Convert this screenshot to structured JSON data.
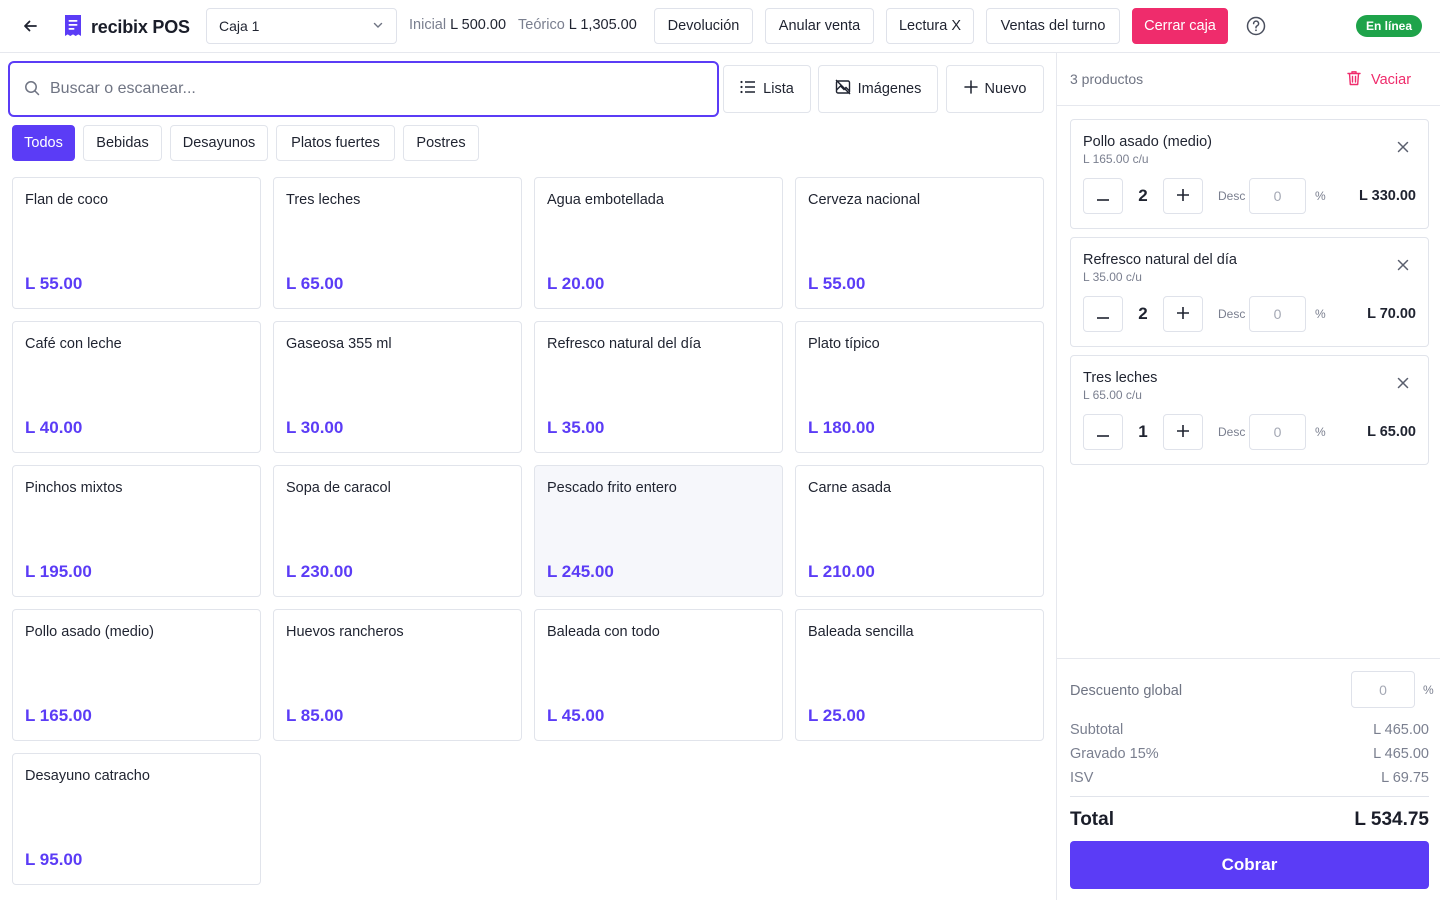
{
  "header": {
    "app_name": "recibix POS",
    "register": "Caja 1",
    "initial_label": "Inicial",
    "initial_value": "L 500.00",
    "theoretical_label": "Teórico",
    "theoretical_value": "L 1,305.00",
    "buttons": {
      "return": "Devolución",
      "void_sale": "Anular venta",
      "x_reading": "Lectura X",
      "shift_sales": "Ventas del turno",
      "close_register": "Cerrar caja"
    },
    "status": "En línea"
  },
  "search": {
    "placeholder": "Buscar o escanear..."
  },
  "view": {
    "list": "Lista",
    "images": "Imágenes",
    "new": "Nuevo"
  },
  "categories": [
    "Todos",
    "Bebidas",
    "Desayunos",
    "Platos fuertes",
    "Postres"
  ],
  "active_category": "Todos",
  "products": [
    {
      "name": "Flan de coco",
      "price": "L 55.00"
    },
    {
      "name": "Tres leches",
      "price": "L 65.00"
    },
    {
      "name": "Agua embotellada",
      "price": "L 20.00"
    },
    {
      "name": "Cerveza nacional",
      "price": "L 55.00"
    },
    {
      "name": "Café con leche",
      "price": "L 40.00"
    },
    {
      "name": "Gaseosa 355 ml",
      "price": "L 30.00"
    },
    {
      "name": "Refresco natural del día",
      "price": "L 35.00"
    },
    {
      "name": "Plato típico",
      "price": "L 180.00"
    },
    {
      "name": "Pinchos mixtos",
      "price": "L 195.00"
    },
    {
      "name": "Sopa de caracol",
      "price": "L 230.00"
    },
    {
      "name": "Pescado frito entero",
      "price": "L 245.00"
    },
    {
      "name": "Carne asada",
      "price": "L 210.00"
    },
    {
      "name": "Pollo asado (medio)",
      "price": "L 165.00"
    },
    {
      "name": "Huevos rancheros",
      "price": "L 85.00"
    },
    {
      "name": "Baleada con todo",
      "price": "L 45.00"
    },
    {
      "name": "Baleada sencilla",
      "price": "L 25.00"
    },
    {
      "name": "Desayuno catracho",
      "price": "L 95.00"
    }
  ],
  "cart": {
    "count_label": "3 productos",
    "clear_label": "Vaciar",
    "discount_label": "Desc",
    "discount_placeholder": "0",
    "percent": "%",
    "items": [
      {
        "name": "Pollo asado (medio)",
        "unit": "L 165.00 c/u",
        "qty": "2",
        "total": "L 330.00"
      },
      {
        "name": "Refresco natural del día",
        "unit": "L 35.00 c/u",
        "qty": "2",
        "total": "L 70.00"
      },
      {
        "name": "Tres leches",
        "unit": "L 65.00 c/u",
        "qty": "1",
        "total": "L 65.00"
      }
    ],
    "global_discount_label": "Descuento global",
    "global_discount_placeholder": "0",
    "subtotal_label": "Subtotal",
    "subtotal": "L 465.00",
    "taxable_label": "Gravado 15%",
    "taxable": "L 465.00",
    "tax_label": "ISV",
    "tax": "L 69.75",
    "total_label": "Total",
    "total": "L 534.75",
    "pay_label": "Cobrar"
  },
  "colors": {
    "accent": "#5b3cf6",
    "danger": "#ef2c6c",
    "online": "#1ea34a"
  }
}
